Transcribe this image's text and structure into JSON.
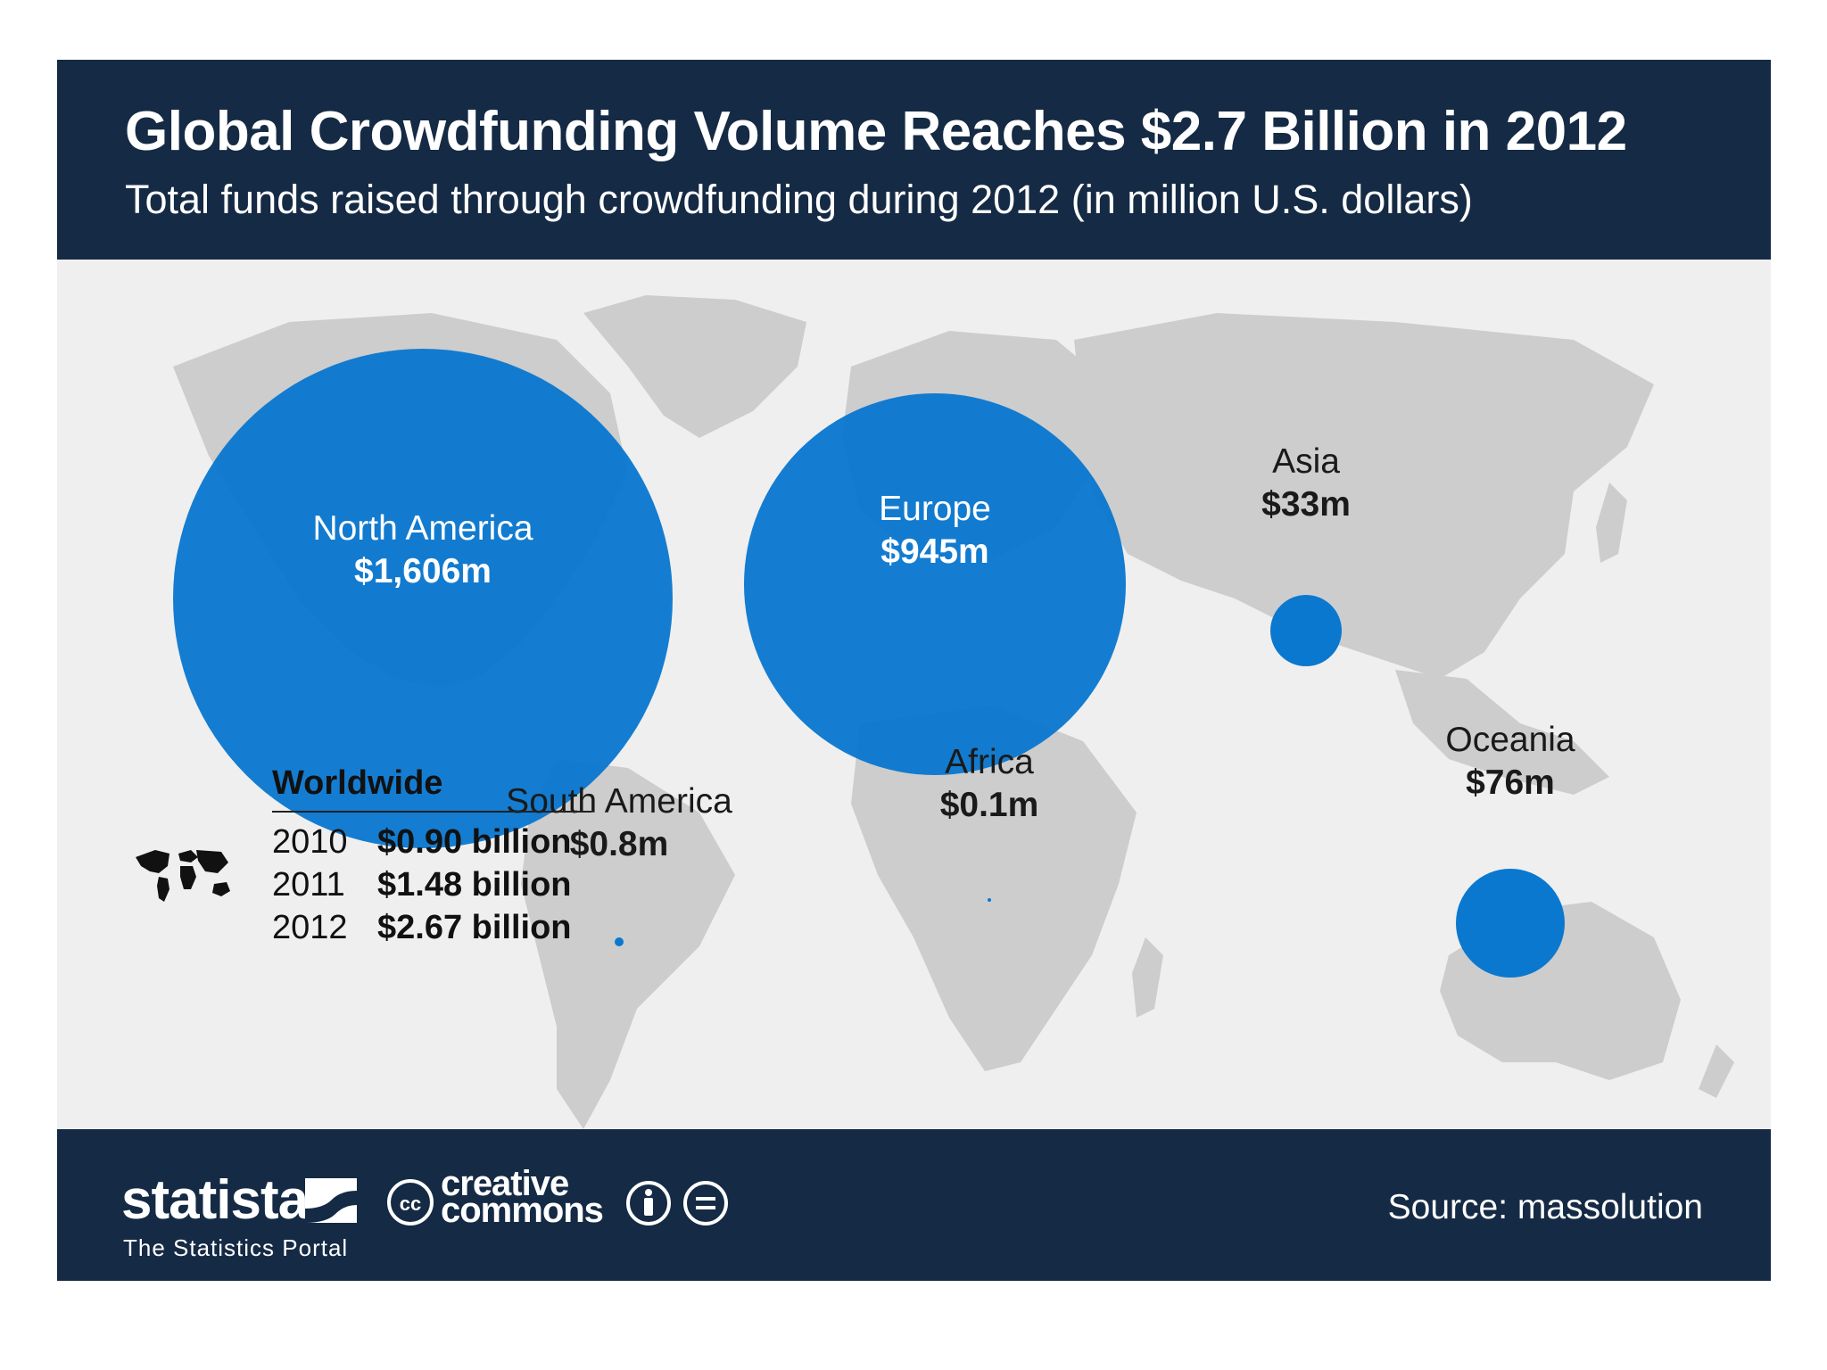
{
  "header": {
    "title": "Global Crowdfunding Volume Reaches $2.7 Billion in 2012",
    "subtitle": "Total funds raised through crowdfunding during 2012 (in million U.S. dollars)"
  },
  "chart_data": {
    "type": "bubble-map",
    "title": "Global Crowdfunding Volume Reaches $2.7 Billion in 2012",
    "subtitle": "Total funds raised through crowdfunding during 2012 (in million U.S. dollars)",
    "unit": "million U.S. dollars",
    "regions": [
      {
        "name": "North America",
        "value": 1606,
        "label": "$1,606m"
      },
      {
        "name": "Europe",
        "value": 945,
        "label": "$945m"
      },
      {
        "name": "Asia",
        "value": 33,
        "label": "$33m"
      },
      {
        "name": "Oceania",
        "value": 76,
        "label": "$76m"
      },
      {
        "name": "South America",
        "value": 0.8,
        "label": "$0.8m"
      },
      {
        "name": "Africa",
        "value": 0.1,
        "label": "$0.1m"
      }
    ],
    "worldwide": {
      "title": "Worldwide",
      "rows": [
        {
          "year": "2010",
          "value": 0.9,
          "label": "$0.90 billion"
        },
        {
          "year": "2011",
          "value": 1.48,
          "label": "$1.48 billion"
        },
        {
          "year": "2012",
          "value": 2.67,
          "label": "$2.67 billion"
        }
      ]
    }
  },
  "footer": {
    "brand": "statista",
    "brand_tagline": "The Statistics Portal",
    "license_text": "creative commons",
    "source": "Source: massolution"
  },
  "colors": {
    "navy": "#152a44",
    "bubble_blue": "#0a78cf",
    "land_gray": "#cfcfcf",
    "background": "#efefef"
  },
  "icons": [
    "world-map-icon",
    "statista-logo-icon",
    "cc-icon",
    "attribution-icon",
    "no-derivatives-icon"
  ]
}
